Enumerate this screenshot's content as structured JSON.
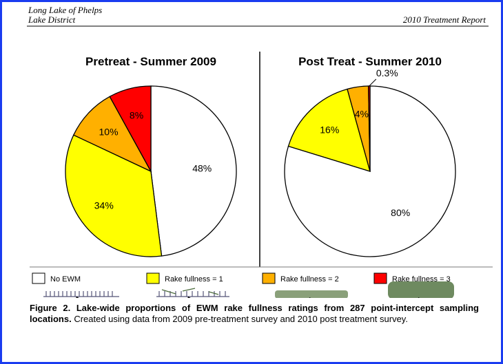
{
  "header": {
    "left_line1": "Long Lake of Phelps",
    "left_line2": "Lake District",
    "right": "2010 Treatment Report"
  },
  "chart_data": [
    {
      "type": "pie",
      "title": "Pretreat - Summer 2009",
      "values": [
        48,
        34,
        10,
        8
      ],
      "value_labels": [
        "48%",
        "34%",
        "10%",
        "8%"
      ]
    },
    {
      "type": "pie",
      "title": "Post Treat - Summer 2010",
      "values": [
        80,
        16,
        4,
        0.3
      ],
      "value_labels": [
        "80%",
        "16%",
        "4%",
        "0.3%"
      ]
    }
  ],
  "legend": {
    "entries": [
      "No EWM",
      "Rake fullness = 1",
      "Rake fullness = 2",
      "Rake fullness = 3"
    ],
    "colors": [
      "#ffffff",
      "#ffff00",
      "#ffb000",
      "#ff0000"
    ]
  },
  "caption": {
    "bold": "Figure 2.  Lake-wide proportions of EWM rake fullness ratings from 287 point-intercept sampling locations.",
    "text": "Created using data from 2009 pre-treatment survey and 2010 post treatment survey."
  }
}
